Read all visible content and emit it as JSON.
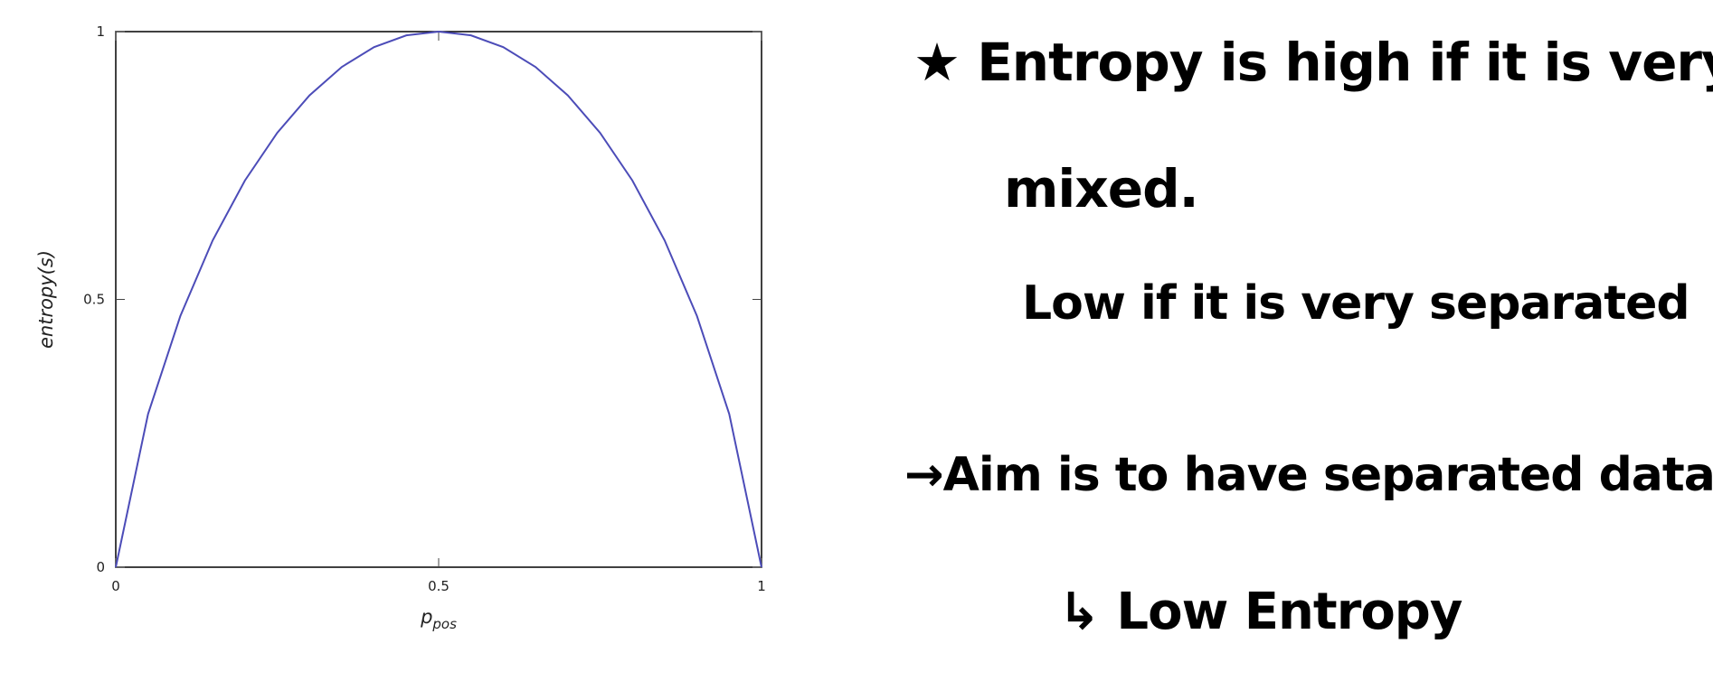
{
  "chart_data": {
    "type": "line",
    "title": "",
    "xlabel": "p",
    "xlabel_subscript": "pos",
    "ylabel": "entropy(s)",
    "xlim": [
      0,
      1
    ],
    "ylim": [
      0,
      1
    ],
    "x_ticks": [
      0,
      0.5,
      1
    ],
    "y_ticks": [
      0,
      0.5,
      1
    ],
    "x_tick_labels": [
      "0",
      "0.5",
      "1"
    ],
    "y_tick_labels": [
      "0",
      "0.5",
      "1"
    ],
    "grid": false,
    "series": [
      {
        "color": "#4c4cb8",
        "x": [
          0,
          0.05,
          0.1,
          0.15,
          0.2,
          0.25,
          0.3,
          0.35,
          0.4,
          0.45,
          0.5,
          0.55,
          0.6,
          0.65,
          0.7,
          0.75,
          0.8,
          0.85,
          0.9,
          0.95,
          1
        ],
        "y": [
          0,
          0.286,
          0.469,
          0.61,
          0.722,
          0.811,
          0.881,
          0.934,
          0.971,
          0.993,
          1,
          0.993,
          0.971,
          0.934,
          0.881,
          0.811,
          0.722,
          0.61,
          0.469,
          0.286,
          0
        ]
      }
    ]
  },
  "notes": [
    "★ Entropy is high if it is very",
    "mixed.",
    "Low if it is very separated",
    "→Aim is to have separated data",
    "↳ Low Entropy"
  ]
}
